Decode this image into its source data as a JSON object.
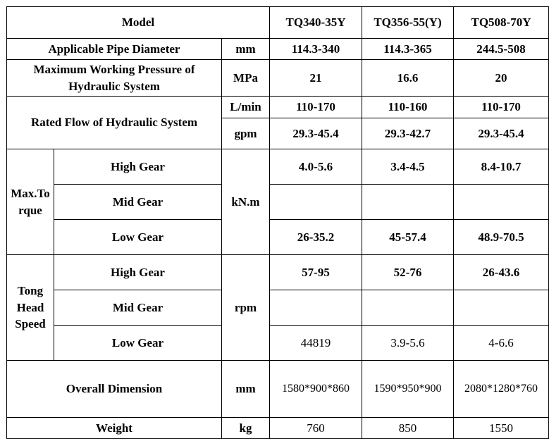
{
  "header": {
    "model_label": "Model",
    "models": [
      "TQ340-35Y",
      "TQ356-55(Y)",
      "TQ508-70Y"
    ]
  },
  "rows": {
    "pipe": {
      "label": "Applicable Pipe Diameter",
      "unit": "mm",
      "values": [
        "114.3-340",
        "114.3-365",
        "244.5-508"
      ]
    },
    "pressure": {
      "label": "Maximum Working Pressure of Hydraulic System",
      "unit": "MPa",
      "values": [
        "21",
        "16.6",
        "20"
      ]
    },
    "flow": {
      "label": "Rated Flow of Hydraulic System",
      "unit_lmin": "L/min",
      "values_lmin": [
        "110-170",
        "110-160",
        "110-170"
      ],
      "unit_gpm": "gpm",
      "values_gpm": [
        "29.3-45.4",
        "29.3-42.7",
        "29.3-45.4"
      ]
    },
    "torque": {
      "label": "Max.Torque",
      "unit": "kN.m",
      "high": {
        "label": "High Gear",
        "values": [
          "4.0-5.6",
          "3.4-4.5",
          "8.4-10.7"
        ]
      },
      "mid": {
        "label": "Mid Gear",
        "values": [
          "",
          "",
          ""
        ]
      },
      "low": {
        "label": "Low Gear",
        "values": [
          "26-35.2",
          "45-57.4",
          "48.9-70.5"
        ]
      }
    },
    "speed": {
      "label": "Tong Head Speed",
      "unit": "rpm",
      "high": {
        "label": "High Gear",
        "values": [
          "57-95",
          "52-76",
          "26-43.6"
        ]
      },
      "mid": {
        "label": "Mid Gear",
        "values": [
          "",
          "",
          ""
        ]
      },
      "low": {
        "label": "Low Gear",
        "values": [
          "44819",
          "3.9-5.6",
          "4-6.6"
        ]
      }
    },
    "dimension": {
      "label": "Overall Dimension",
      "unit": "mm",
      "values": [
        "1580*900*860",
        "1590*950*900",
        "2080*1280*760"
      ]
    },
    "weight": {
      "label": "Weight",
      "unit": "kg",
      "values": [
        "760",
        "850",
        "1550"
      ]
    }
  }
}
